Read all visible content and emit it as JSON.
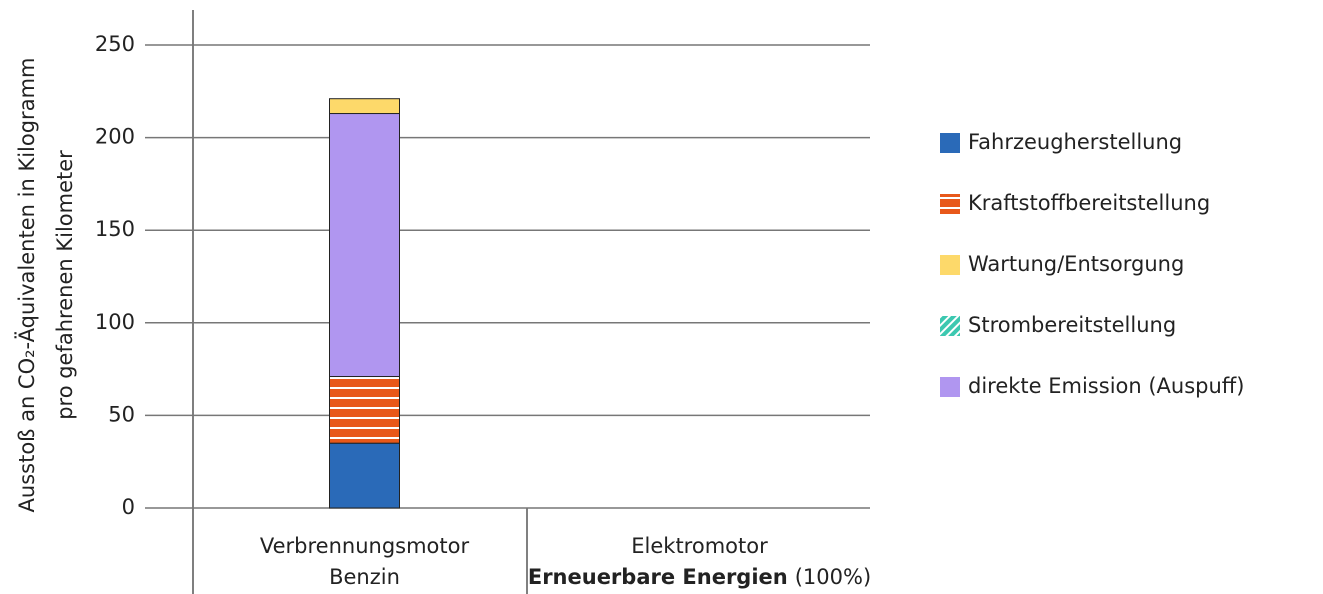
{
  "chart_data": {
    "type": "stacked_bar",
    "ylabel": [
      "Ausstoß an CO₂-Äquivalenten in Kilogramm",
      "pro gefahrenen Kilometer"
    ],
    "categories": [
      "Verbrennungsmotor",
      "Elektromotor"
    ],
    "category_details": [
      [
        {
          "text": "Benzin",
          "bold": false
        }
      ],
      [
        {
          "text": "Erneuerbare Energien",
          "bold": true
        },
        {
          "text": "(100%)",
          "bold": false
        }
      ]
    ],
    "series": [
      {
        "name": "Fahrzeugherstellung",
        "color": "#2a6ab8",
        "values": [
          35,
          0
        ]
      },
      {
        "name": "Kraftstoffbereitstellung",
        "color": "#e8581a",
        "pattern": "stripes",
        "values": [
          36,
          0
        ]
      },
      {
        "name": "Strombereitstellung",
        "color": "#3cc8b0",
        "pattern": "hatch",
        "values": [
          0,
          0
        ]
      },
      {
        "name": "direkte Emission (Auspuff)",
        "color": "#b096f0",
        "values": [
          142,
          0
        ]
      },
      {
        "name": "Wartung/Entsorgung",
        "color": "#fdd96a",
        "values": [
          8,
          0
        ]
      }
    ],
    "legend_order": [
      0,
      1,
      4,
      2,
      3
    ],
    "ylim": [
      0,
      250
    ],
    "yticks": [
      0,
      50,
      100,
      150,
      200,
      250
    ],
    "grid": true,
    "legend": "right"
  }
}
